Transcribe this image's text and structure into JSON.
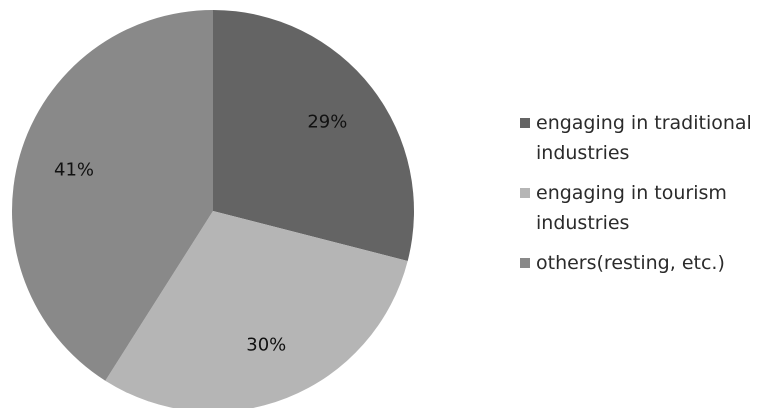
{
  "chart_data": {
    "type": "pie",
    "title": "",
    "slices": [
      {
        "label": "engaging in traditional industries",
        "value": 29,
        "display": "29%",
        "color": "#646464"
      },
      {
        "label": "engaging in tourism industries",
        "value": 30,
        "display": "30%",
        "color": "#b5b5b5"
      },
      {
        "label": "others(resting, etc.)",
        "value": 41,
        "display": "41%",
        "color": "#898989"
      }
    ],
    "legend_placement": "right"
  }
}
